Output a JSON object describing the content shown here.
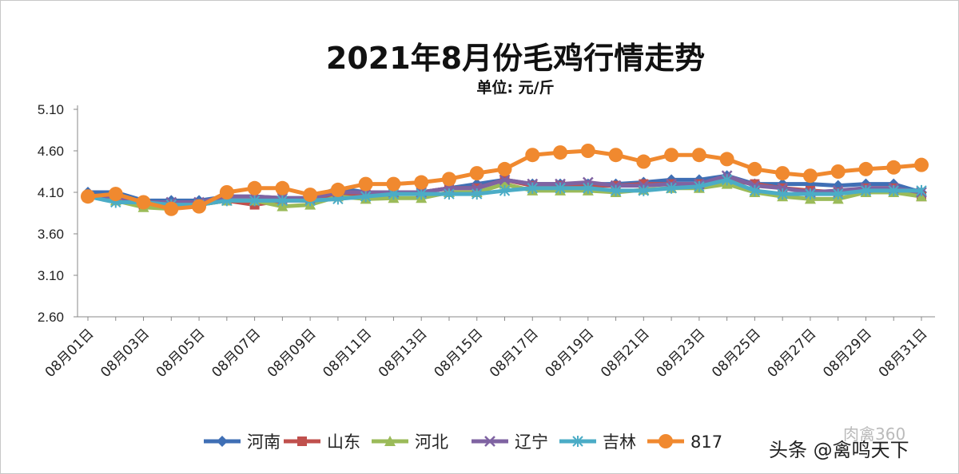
{
  "chart_data": {
    "type": "line",
    "title": "2021年8月份毛鸡行情走势",
    "subtitle": "单位: 元/斤",
    "xlabel": "",
    "ylabel": "",
    "ylim": [
      2.6,
      5.1
    ],
    "yticks": [
      "2.60",
      "3.10",
      "3.60",
      "4.10",
      "4.60",
      "5.10"
    ],
    "grid": false,
    "legend": "bottom",
    "x": [
      "08月01日",
      "08月02日",
      "08月03日",
      "08月04日",
      "08月05日",
      "08月06日",
      "08月07日",
      "08月08日",
      "08月09日",
      "08月10日",
      "08月11日",
      "08月12日",
      "08月13日",
      "08月14日",
      "08月15日",
      "08月16日",
      "08月17日",
      "08月18日",
      "08月19日",
      "08月20日",
      "08月21日",
      "08月22日",
      "08月23日",
      "08月24日",
      "08月25日",
      "08月26日",
      "08月27日",
      "08月28日",
      "08月29日",
      "08月30日",
      "08月31日"
    ],
    "xtick_labels": [
      "08月01日",
      "08月03日",
      "08月05日",
      "08月07日",
      "08月09日",
      "08月11日",
      "08月13日",
      "08月15日",
      "08月17日",
      "08月19日",
      "08月21日",
      "08月23日",
      "08月25日",
      "08月27日",
      "08月29日",
      "08月31日"
    ],
    "series": [
      {
        "name": "河南",
        "color": "#3f6fb5",
        "marker": "diamond",
        "values": [
          4.1,
          4.1,
          4.0,
          4.0,
          4.0,
          4.05,
          4.05,
          4.03,
          4.03,
          4.15,
          4.1,
          4.1,
          4.1,
          4.15,
          4.2,
          4.25,
          4.2,
          4.2,
          4.2,
          4.2,
          4.22,
          4.25,
          4.25,
          4.3,
          4.2,
          4.2,
          4.2,
          4.18,
          4.2,
          4.2,
          4.1
        ]
      },
      {
        "name": "山东",
        "color": "#c0504d",
        "marker": "square",
        "values": [
          4.05,
          4.05,
          3.95,
          3.92,
          3.95,
          4.0,
          3.95,
          4.0,
          4.0,
          4.05,
          4.1,
          4.1,
          4.1,
          4.15,
          4.15,
          4.25,
          4.18,
          4.18,
          4.18,
          4.18,
          4.2,
          4.2,
          4.2,
          4.25,
          4.2,
          4.15,
          4.12,
          4.1,
          4.15,
          4.15,
          4.05
        ]
      },
      {
        "name": "河北",
        "color": "#9bbb59",
        "marker": "triangle",
        "values": [
          4.05,
          4.0,
          3.92,
          3.9,
          3.95,
          4.0,
          4.0,
          3.93,
          3.95,
          4.05,
          4.02,
          4.03,
          4.03,
          4.1,
          4.1,
          4.2,
          4.12,
          4.12,
          4.12,
          4.1,
          4.13,
          4.15,
          4.15,
          4.2,
          4.1,
          4.05,
          4.02,
          4.02,
          4.1,
          4.1,
          4.05
        ]
      },
      {
        "name": "辽宁",
        "color": "#7f63a2",
        "marker": "x",
        "values": [
          4.05,
          4.05,
          3.98,
          3.98,
          3.98,
          4.05,
          4.05,
          4.03,
          4.03,
          4.1,
          4.1,
          4.1,
          4.1,
          4.15,
          4.15,
          4.25,
          4.2,
          4.2,
          4.22,
          4.18,
          4.18,
          4.2,
          4.2,
          4.3,
          4.18,
          4.15,
          4.1,
          4.12,
          4.15,
          4.15,
          4.1
        ]
      },
      {
        "name": "吉林",
        "color": "#4bacc6",
        "marker": "asterisk",
        "values": [
          4.05,
          3.98,
          3.98,
          3.95,
          3.95,
          4.0,
          4.0,
          4.0,
          4.0,
          4.02,
          4.05,
          4.08,
          4.08,
          4.08,
          4.08,
          4.12,
          4.15,
          4.15,
          4.15,
          4.12,
          4.12,
          4.15,
          4.17,
          4.25,
          4.12,
          4.08,
          4.08,
          4.08,
          4.12,
          4.12,
          4.12
        ]
      },
      {
        "name": "817",
        "color": "#f0892f",
        "marker": "circle",
        "values": [
          4.05,
          4.08,
          3.98,
          3.9,
          3.93,
          4.1,
          4.15,
          4.15,
          4.07,
          4.13,
          4.2,
          4.2,
          4.22,
          4.26,
          4.33,
          4.38,
          4.55,
          4.58,
          4.6,
          4.55,
          4.47,
          4.55,
          4.55,
          4.5,
          4.38,
          4.33,
          4.3,
          4.35,
          4.38,
          4.4,
          4.43
        ]
      }
    ]
  },
  "watermark": {
    "main": "头条 @禽鸣天下",
    "faint": "肉禽360"
  }
}
